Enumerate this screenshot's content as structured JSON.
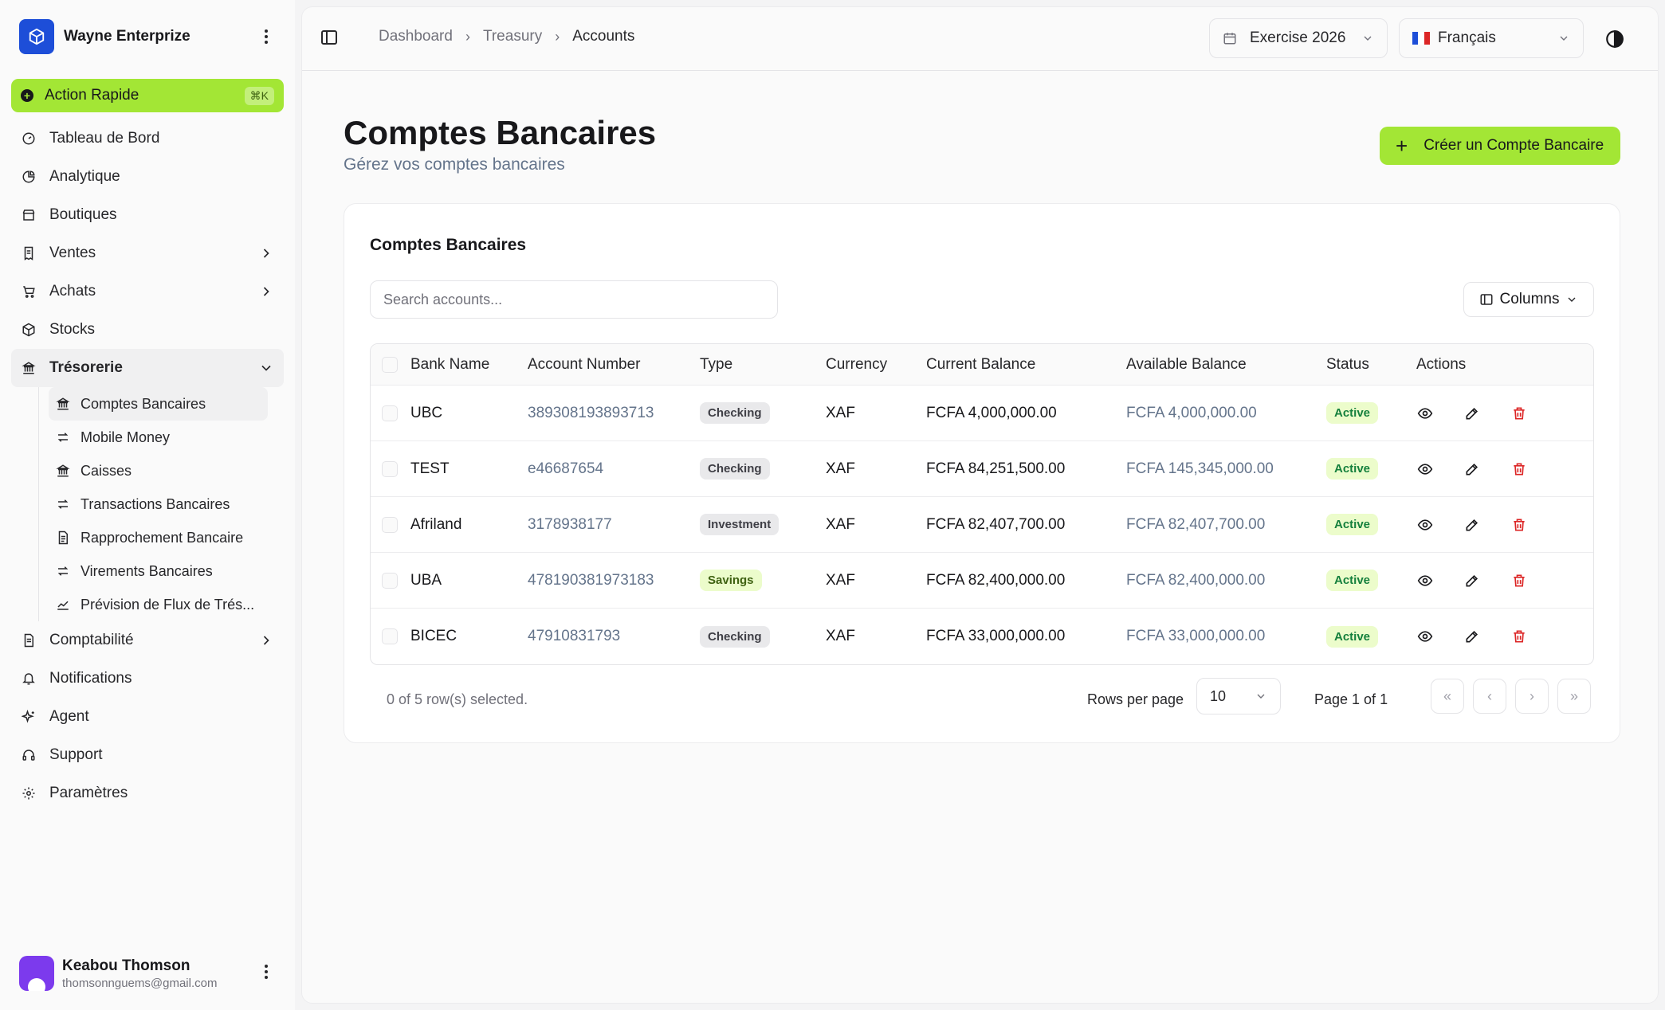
{
  "brand": {
    "name": "Wayne Enterprize",
    "logo_icon": "box-logo"
  },
  "quick_action": {
    "label": "Action Rapide",
    "shortcut": "⌘K"
  },
  "nav": {
    "items": [
      {
        "label": "Tableau de Bord",
        "icon": "gauge-icon"
      },
      {
        "label": "Analytique",
        "icon": "pie-chart-icon"
      },
      {
        "label": "Boutiques",
        "icon": "store-icon"
      },
      {
        "label": "Ventes",
        "icon": "receipt-icon"
      },
      {
        "label": "Achats",
        "icon": "cart-icon"
      },
      {
        "label": "Stocks",
        "icon": "package-icon"
      },
      {
        "label": "Trésorerie",
        "icon": "landmark-icon"
      },
      {
        "label": "Comptabilité",
        "icon": "file-icon"
      },
      {
        "label": "Notifications",
        "icon": "bell-icon"
      },
      {
        "label": "Agent",
        "icon": "sparkles-icon"
      },
      {
        "label": "Support",
        "icon": "headset-icon"
      },
      {
        "label": "Paramètres",
        "icon": "gear-icon"
      }
    ],
    "treasury_sub": [
      {
        "label": "Comptes Bancaires",
        "icon": "landmark-icon"
      },
      {
        "label": "Mobile Money",
        "icon": "arrows-icon"
      },
      {
        "label": "Caisses",
        "icon": "landmark-icon"
      },
      {
        "label": "Transactions Bancaires",
        "icon": "arrows-icon"
      },
      {
        "label": "Rapprochement Bancaire",
        "icon": "file-icon"
      },
      {
        "label": "Virements Bancaires",
        "icon": "arrows-icon"
      },
      {
        "label": "Prévision de Flux de Trés...",
        "icon": "trend-icon"
      }
    ]
  },
  "user": {
    "name": "Keabou Thomson",
    "email": "thomsonnguems@gmail.com"
  },
  "breadcrumb": {
    "items": [
      "Dashboard",
      "Treasury",
      "Accounts"
    ]
  },
  "header": {
    "fiscal_year": "Exercise 2026",
    "language": "Français"
  },
  "page": {
    "title": "Comptes Bancaires",
    "subtitle": "Gérez vos comptes bancaires",
    "create_button": "Créer un Compte Bancaire"
  },
  "card": {
    "title": "Comptes Bancaires",
    "search_placeholder": "Search accounts...",
    "columns_button": "Columns"
  },
  "table": {
    "headers": [
      "Bank Name",
      "Account Number",
      "Type",
      "Currency",
      "Current Balance",
      "Available Balance",
      "Status",
      "Actions"
    ],
    "rows": [
      {
        "bank": "UBC",
        "account": "389308193893713",
        "type": "Checking",
        "currency": "XAF",
        "current": "FCFA 4,000,000.00",
        "available": "FCFA 4,000,000.00",
        "status": "Active"
      },
      {
        "bank": "TEST",
        "account": "e46687654",
        "type": "Checking",
        "currency": "XAF",
        "current": "FCFA 84,251,500.00",
        "available": "FCFA 145,345,000.00",
        "status": "Active"
      },
      {
        "bank": "Afriland",
        "account": "3178938177",
        "type": "Investment",
        "currency": "XAF",
        "current": "FCFA 82,407,700.00",
        "available": "FCFA 82,407,700.00",
        "status": "Active"
      },
      {
        "bank": "UBA",
        "account": "478190381973183",
        "type": "Savings",
        "currency": "XAF",
        "current": "FCFA 82,400,000.00",
        "available": "FCFA 82,400,000.00",
        "status": "Active"
      },
      {
        "bank": "BICEC",
        "account": "47910831793",
        "type": "Checking",
        "currency": "XAF",
        "current": "FCFA 33,000,000.00",
        "available": "FCFA 33,000,000.00",
        "status": "Active"
      }
    ]
  },
  "footer": {
    "selected_text": "0 of 5 row(s) selected.",
    "rows_per_page_label": "Rows per page",
    "rows_per_page_value": "10",
    "page_text": "Page 1 of 1"
  },
  "colors": {
    "accent": "#a3e635",
    "delete": "#dc2626",
    "active_text": "#15803d"
  }
}
